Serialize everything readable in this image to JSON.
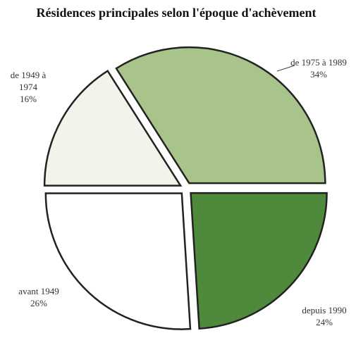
{
  "chart_data": {
    "type": "pie",
    "title": "Résidences principales selon l'époque d'achèvement",
    "categories": [
      "de 1975 à 1989",
      "depuis 1990",
      "avant 1949",
      "de 1949 à 1974"
    ],
    "values": [
      34,
      24,
      26,
      16
    ],
    "value_labels": [
      "34%",
      "24%",
      "26%",
      "16%"
    ],
    "colors": [
      "#a9c48a",
      "#4f8a3c",
      "#ffffff",
      "#f3f3ec"
    ]
  }
}
